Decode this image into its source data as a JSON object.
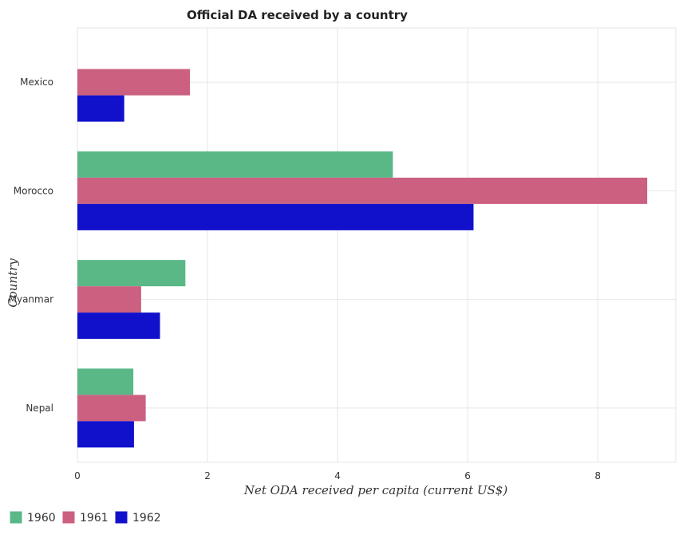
{
  "chart_data": {
    "type": "bar",
    "orientation": "horizontal",
    "title": "Official DA received by a country",
    "xlabel": "Net ODA received per capita (current US$)",
    "ylabel": "Country",
    "categories": [
      "Mexico",
      "Morocco",
      "Myanmar",
      "Nepal"
    ],
    "series": [
      {
        "name": "1960",
        "color": "#5ab887",
        "values": [
          0.0,
          4.85,
          1.66,
          0.86
        ]
      },
      {
        "name": "1961",
        "color": "#cc6080",
        "values": [
          1.73,
          8.76,
          0.98,
          1.05
        ]
      },
      {
        "name": "1962",
        "color": "#1111cc",
        "values": [
          0.72,
          6.09,
          1.27,
          0.87
        ]
      }
    ],
    "xlim": [
      0,
      9.2
    ],
    "xticks": [
      0,
      2,
      4,
      6,
      8
    ],
    "xtick_labels": [
      "0",
      "2",
      "4",
      "6",
      "8"
    ],
    "grid": true,
    "legend_position": "bottom-left"
  }
}
